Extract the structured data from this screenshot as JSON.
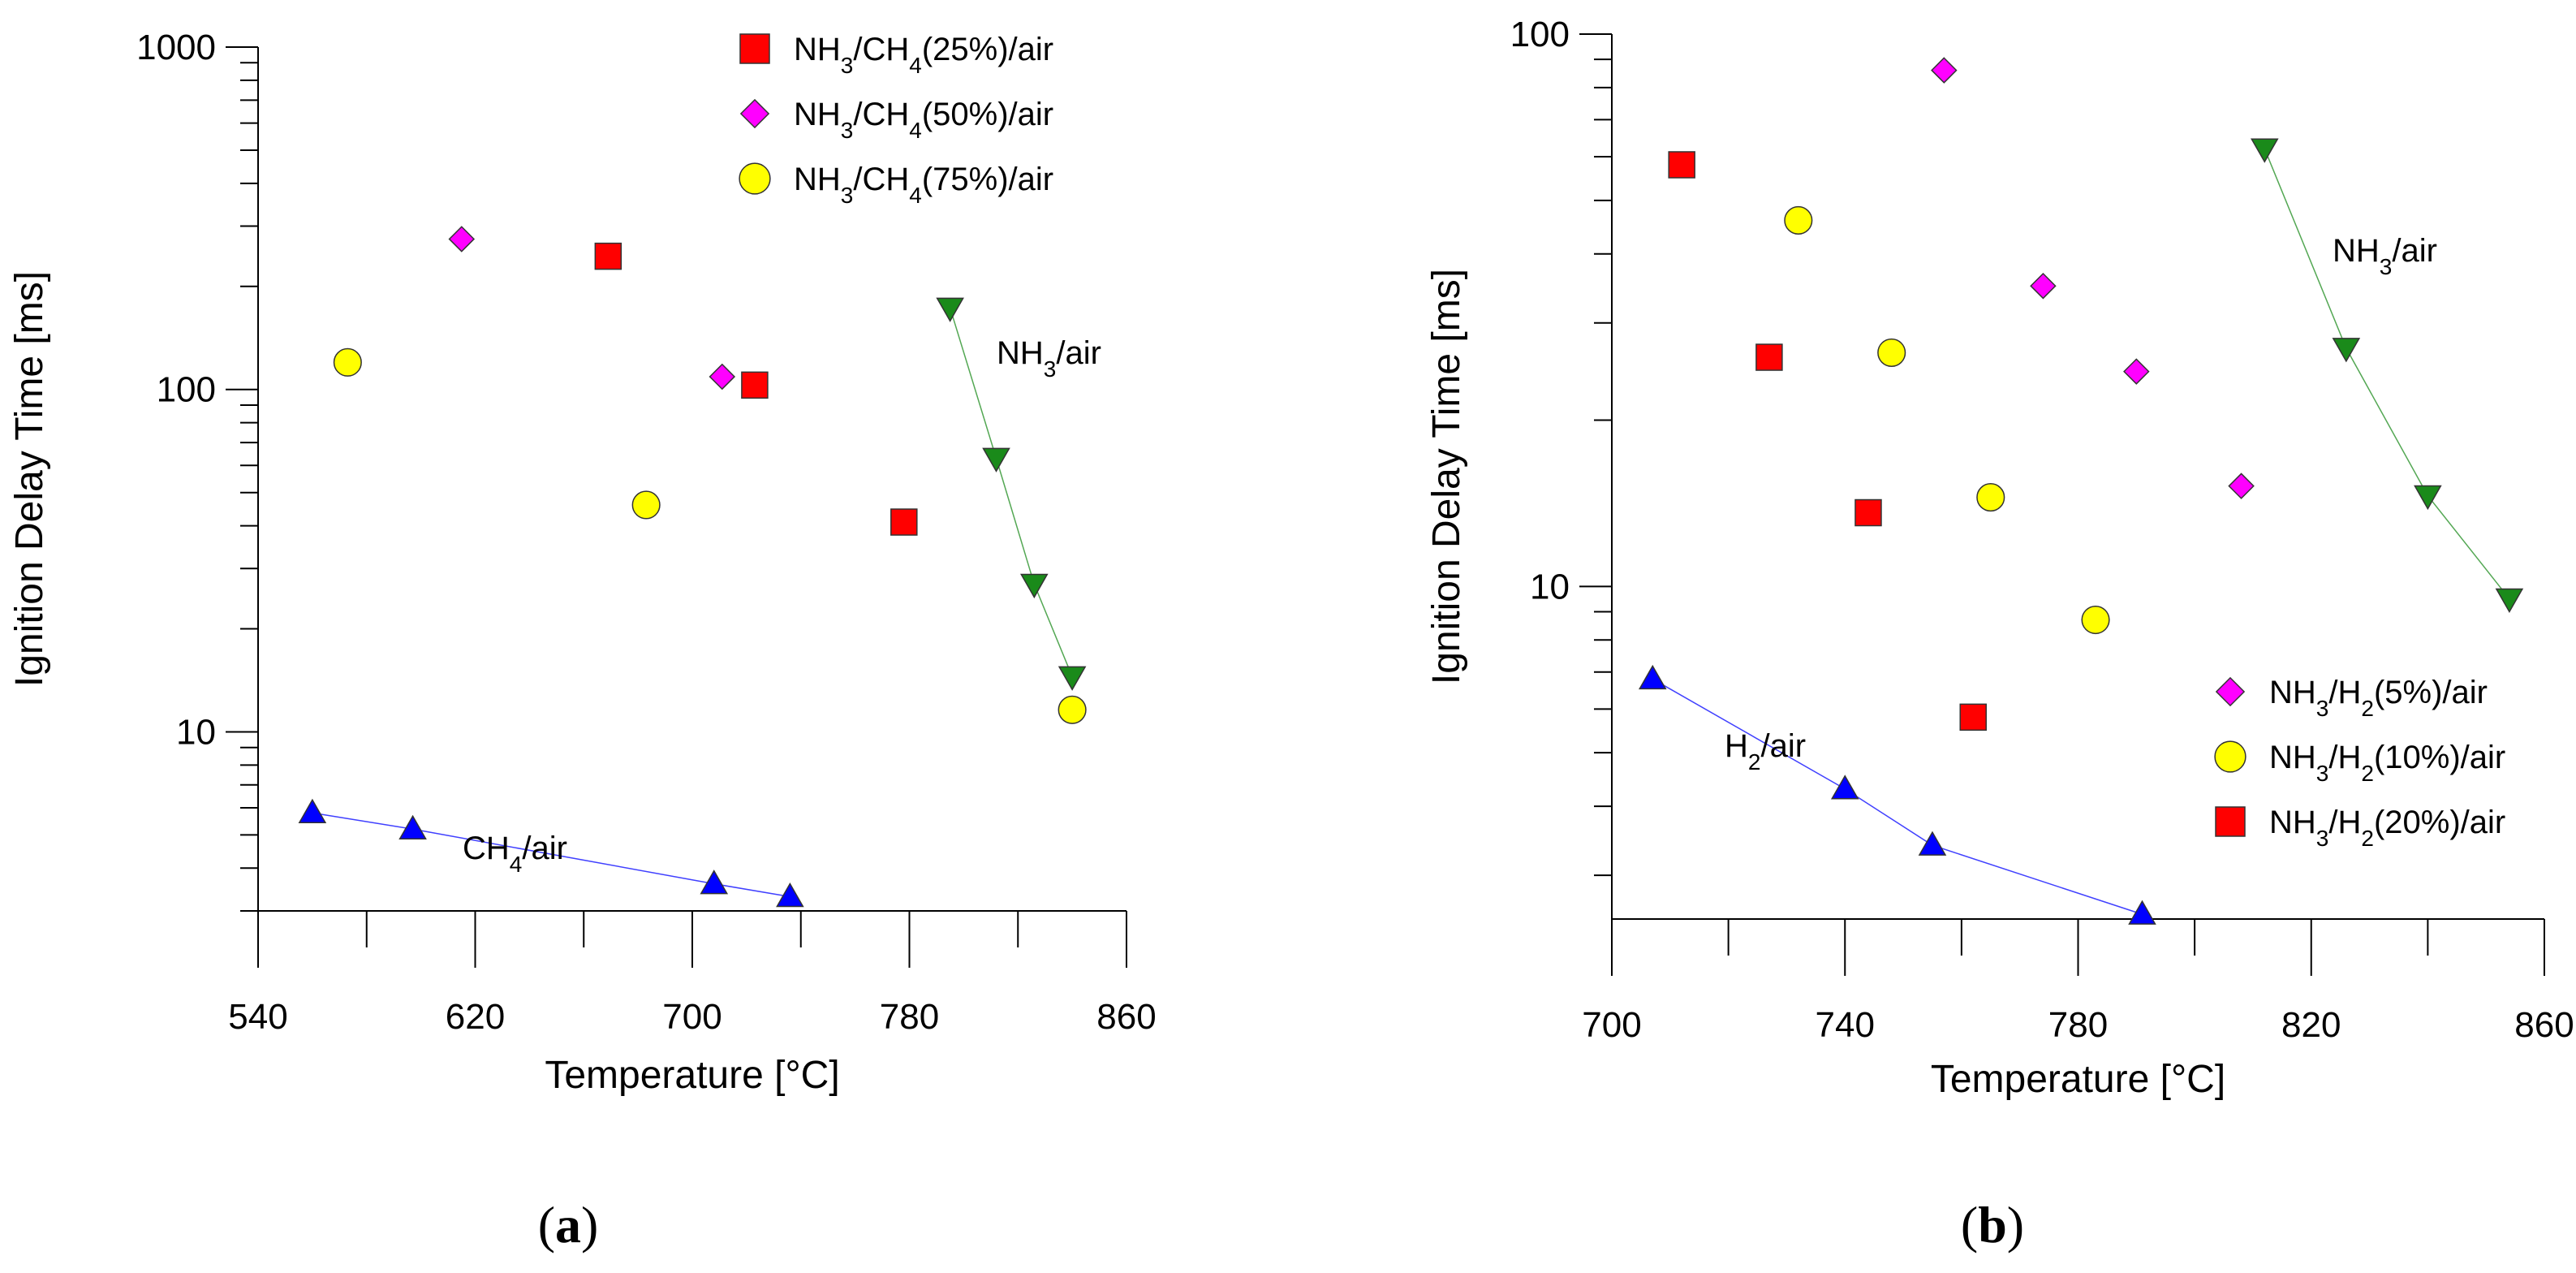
{
  "chart_data": [
    {
      "panel": "(a)",
      "panel_letter": "a",
      "type": "scatter",
      "xlabel": "Temperature [°C]",
      "ylabel": "Ignition Delay Time [ms]",
      "xscale": "linear",
      "yscale": "log",
      "xlim": [
        540,
        860
      ],
      "ylim": [
        3,
        1000
      ],
      "xticks": [
        540,
        620,
        700,
        780,
        860
      ],
      "yticks": [
        10,
        100,
        1000
      ],
      "legend_position": "top-right",
      "series": [
        {
          "name": "NH3/CH4(25%)/air",
          "parts": [
            {
              "t": "NH"
            },
            {
              "t": "3",
              "sub": true
            },
            {
              "t": "/CH"
            },
            {
              "t": "4",
              "sub": true
            },
            {
              "t": "(25%)/air"
            }
          ],
          "marker": "square",
          "color": "#ff0000",
          "in_legend": true,
          "line": false,
          "x": [
            669,
            723,
            778
          ],
          "y": [
            245,
            103,
            41
          ]
        },
        {
          "name": "NH3/CH4(50%)/air",
          "parts": [
            {
              "t": "NH"
            },
            {
              "t": "3",
              "sub": true
            },
            {
              "t": "/CH"
            },
            {
              "t": "4",
              "sub": true
            },
            {
              "t": "(50%)/air"
            }
          ],
          "marker": "diamond",
          "color": "#ff00ff",
          "in_legend": true,
          "line": false,
          "x": [
            615,
            711
          ],
          "y": [
            275,
            109
          ]
        },
        {
          "name": "NH3/CH4(75%)/air",
          "parts": [
            {
              "t": "NH"
            },
            {
              "t": "3",
              "sub": true
            },
            {
              "t": "/CH"
            },
            {
              "t": "4",
              "sub": true
            },
            {
              "t": "(75%)/air"
            }
          ],
          "marker": "circle",
          "color": "#ffff00",
          "in_legend": true,
          "line": false,
          "x": [
            573,
            683,
            840
          ],
          "y": [
            120,
            46,
            11.6
          ]
        },
        {
          "name": "NH3/air",
          "parts": [
            {
              "t": "NH"
            },
            {
              "t": "3",
              "sub": true
            },
            {
              "t": "/air"
            }
          ],
          "marker": "triangle-down",
          "color": "#1a8a1a",
          "in_legend": false,
          "line": true,
          "x": [
            795,
            812,
            826,
            840
          ],
          "y": [
            173,
            63,
            27,
            14.5
          ]
        },
        {
          "name": "CH4/air",
          "parts": [
            {
              "t": "CH"
            },
            {
              "t": "4",
              "sub": true
            },
            {
              "t": "/air"
            }
          ],
          "marker": "triangle-up",
          "color": "#0000ff",
          "in_legend": false,
          "line": true,
          "x": [
            560,
            597,
            708,
            736
          ],
          "y": [
            5.8,
            5.2,
            3.6,
            3.3
          ]
        }
      ]
    },
    {
      "panel": "(b)",
      "panel_letter": "b",
      "type": "scatter",
      "xlabel": "Temperature [°C]",
      "ylabel": "Ignition Delay Time [ms]",
      "xscale": "linear",
      "yscale": "log",
      "xlim": [
        700,
        860
      ],
      "ylim": [
        2.5,
        100
      ],
      "xticks": [
        700,
        740,
        780,
        820,
        860
      ],
      "yticks": [
        10,
        100
      ],
      "legend_position": "bottom-right",
      "series": [
        {
          "name": "NH3/H2(5%)/air",
          "parts": [
            {
              "t": "NH"
            },
            {
              "t": "3",
              "sub": true
            },
            {
              "t": "/H"
            },
            {
              "t": "2",
              "sub": true
            },
            {
              "t": "(5%)/air"
            }
          ],
          "marker": "diamond",
          "color": "#ff00ff",
          "in_legend": true,
          "line": false,
          "x": [
            757,
            774,
            790,
            808
          ],
          "y": [
            86,
            35,
            24.5,
            15.2
          ]
        },
        {
          "name": "NH3/H2(10%)/air",
          "parts": [
            {
              "t": "NH"
            },
            {
              "t": "3",
              "sub": true
            },
            {
              "t": "/H"
            },
            {
              "t": "2",
              "sub": true
            },
            {
              "t": "(10%)/air"
            }
          ],
          "marker": "circle",
          "color": "#ffff00",
          "in_legend": true,
          "line": false,
          "x": [
            732,
            748,
            765,
            783
          ],
          "y": [
            46,
            26.5,
            14.5,
            8.7
          ]
        },
        {
          "name": "NH3/H2(20%)/air",
          "parts": [
            {
              "t": "NH"
            },
            {
              "t": "3",
              "sub": true
            },
            {
              "t": "/H"
            },
            {
              "t": "2",
              "sub": true
            },
            {
              "t": "(20%)/air"
            }
          ],
          "marker": "square",
          "color": "#ff0000",
          "in_legend": true,
          "line": false,
          "x": [
            712,
            727,
            744,
            762
          ],
          "y": [
            58,
            26,
            13.6,
            5.8
          ]
        },
        {
          "name": "NH3/air",
          "parts": [
            {
              "t": "NH"
            },
            {
              "t": "3",
              "sub": true
            },
            {
              "t": "/air"
            }
          ],
          "marker": "triangle-down",
          "color": "#1a8a1a",
          "in_legend": false,
          "line": true,
          "x": [
            812,
            826,
            840,
            854
          ],
          "y": [
            62,
            27,
            14.6,
            9.5
          ]
        },
        {
          "name": "H2/air",
          "parts": [
            {
              "t": "H"
            },
            {
              "t": "2",
              "sub": true
            },
            {
              "t": "/air"
            }
          ],
          "marker": "triangle-up",
          "color": "#0000ff",
          "in_legend": false,
          "line": true,
          "x": [
            707,
            740,
            755,
            791
          ],
          "y": [
            6.8,
            4.3,
            3.4,
            2.55
          ]
        }
      ]
    }
  ]
}
